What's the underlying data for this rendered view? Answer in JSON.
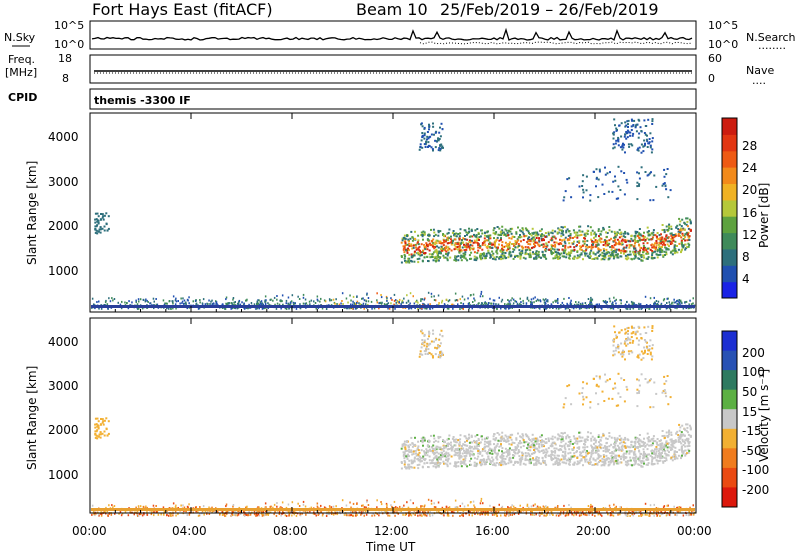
{
  "header": {
    "station": "Fort Hays East (fitACF)",
    "beam": "Beam 10",
    "dates": "25/Feb/2019 – 26/Feb/2019"
  },
  "sky_panel": {
    "left_label": "N.Sky",
    "left_ticks": [
      "10^5",
      "10^0"
    ],
    "right_ticks": [
      "10^5",
      "10^0"
    ],
    "right_label": "N.Search",
    "right_legend": "........"
  },
  "freq_panel": {
    "left_label_1": "Freq.",
    "left_label_2": "[MHz]",
    "left_ticks": [
      "18",
      "8"
    ],
    "right_ticks": [
      "60",
      "0"
    ],
    "right_label": "Nave",
    "right_legend": "...."
  },
  "cpid": {
    "label": "CPID",
    "text": "themis -3300 IF"
  },
  "chart_data": [
    {
      "type": "heatmap",
      "title": "Power",
      "ylabel": "Slant Range [km]",
      "ylim": [
        180,
        4500
      ],
      "yticks": [
        "4000",
        "3000",
        "2000",
        "1000"
      ],
      "xlim": [
        "00:00",
        "24:00"
      ],
      "colorbar": {
        "label": "Power [dB]",
        "ticks": [
          "28",
          "24",
          "20",
          "16",
          "12",
          "8",
          "4"
        ],
        "range": [
          0,
          32
        ],
        "colors": [
          "#1a23e6",
          "#2050b0",
          "#2d6f7c",
          "#3f8a5a",
          "#5ea23f",
          "#b5c83a",
          "#f0b224",
          "#f28a1b",
          "#ee5a14",
          "#e23612",
          "#cc1c10"
        ]
      }
    },
    {
      "type": "heatmap",
      "title": "Velocity",
      "ylabel": "Slant Range [km]",
      "xlabel": "Time UT",
      "ylim": [
        180,
        4500
      ],
      "yticks": [
        "4000",
        "3000",
        "2000",
        "1000"
      ],
      "xlim": [
        "00:00",
        "24:00"
      ],
      "xticks": [
        "00:00",
        "04:00",
        "08:00",
        "12:00",
        "16:00",
        "20:00",
        "00:00"
      ],
      "colorbar": {
        "label": "Velocity [m s⁻¹]",
        "ticks": [
          "200",
          "100",
          "50",
          "15",
          "-15",
          "-50",
          "-100",
          "-200"
        ],
        "bands": [
          "#1c2fd2",
          "#2852b4",
          "#2e7a60",
          "#5cb043",
          "#c8c8c8",
          "#f2b033",
          "#f07c1e",
          "#ea4a12",
          "#dc180c"
        ]
      }
    }
  ]
}
